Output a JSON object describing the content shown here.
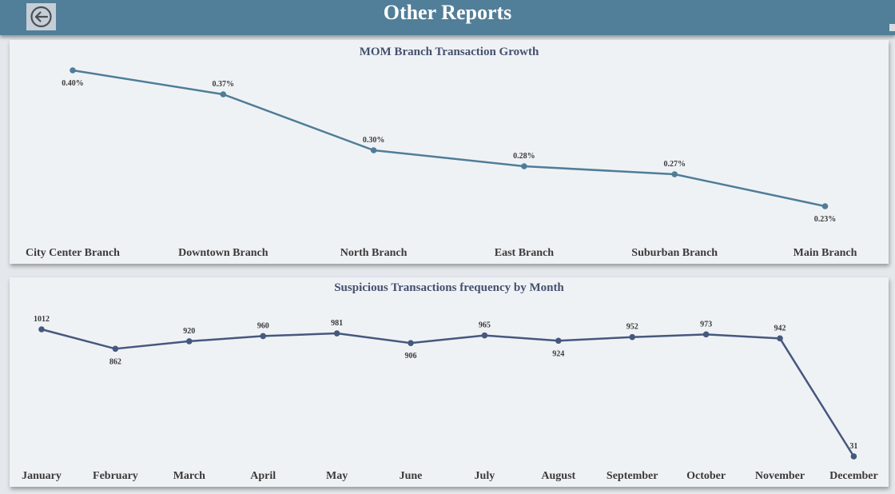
{
  "header": {
    "title": "Other Reports",
    "back_icon": "arrow-left-circle-icon",
    "background": "#517e98"
  },
  "charts": [
    {
      "title": "MOM Branch Transaction Growth",
      "color": "#4f7d98",
      "categories": [
        "City Center Branch",
        "Downtown Branch",
        "North Branch",
        "East Branch",
        "Suburban Branch",
        "Main Branch"
      ],
      "labels": [
        "0.40%",
        "0.37%",
        "0.30%",
        "0.28%",
        "0.27%",
        "0.23%"
      ]
    },
    {
      "title": "Suspicious Transactions frequency by Month",
      "color": "#46587e",
      "categories": [
        "January",
        "February",
        "March",
        "April",
        "May",
        "June",
        "July",
        "August",
        "September",
        "October",
        "November",
        "December"
      ],
      "labels": [
        "1012",
        "862",
        "920",
        "960",
        "981",
        "906",
        "965",
        "924",
        "952",
        "973",
        "942",
        "31"
      ]
    }
  ],
  "chart_data": [
    {
      "type": "line",
      "title": "MOM Branch Transaction Growth",
      "categories": [
        "City Center Branch",
        "Downtown Branch",
        "North Branch",
        "East Branch",
        "Suburban Branch",
        "Main Branch"
      ],
      "values": [
        0.4,
        0.37,
        0.3,
        0.28,
        0.27,
        0.23
      ],
      "ylim": [
        0.22,
        0.4
      ],
      "grid": false
    },
    {
      "type": "line",
      "title": "Suspicious Transactions frequency by Month",
      "categories": [
        "January",
        "February",
        "March",
        "April",
        "May",
        "June",
        "July",
        "August",
        "September",
        "October",
        "November",
        "December"
      ],
      "values": [
        1012,
        862,
        920,
        960,
        981,
        906,
        965,
        924,
        952,
        973,
        942,
        31
      ],
      "ylim": [
        0,
        1012
      ],
      "grid": false
    }
  ]
}
